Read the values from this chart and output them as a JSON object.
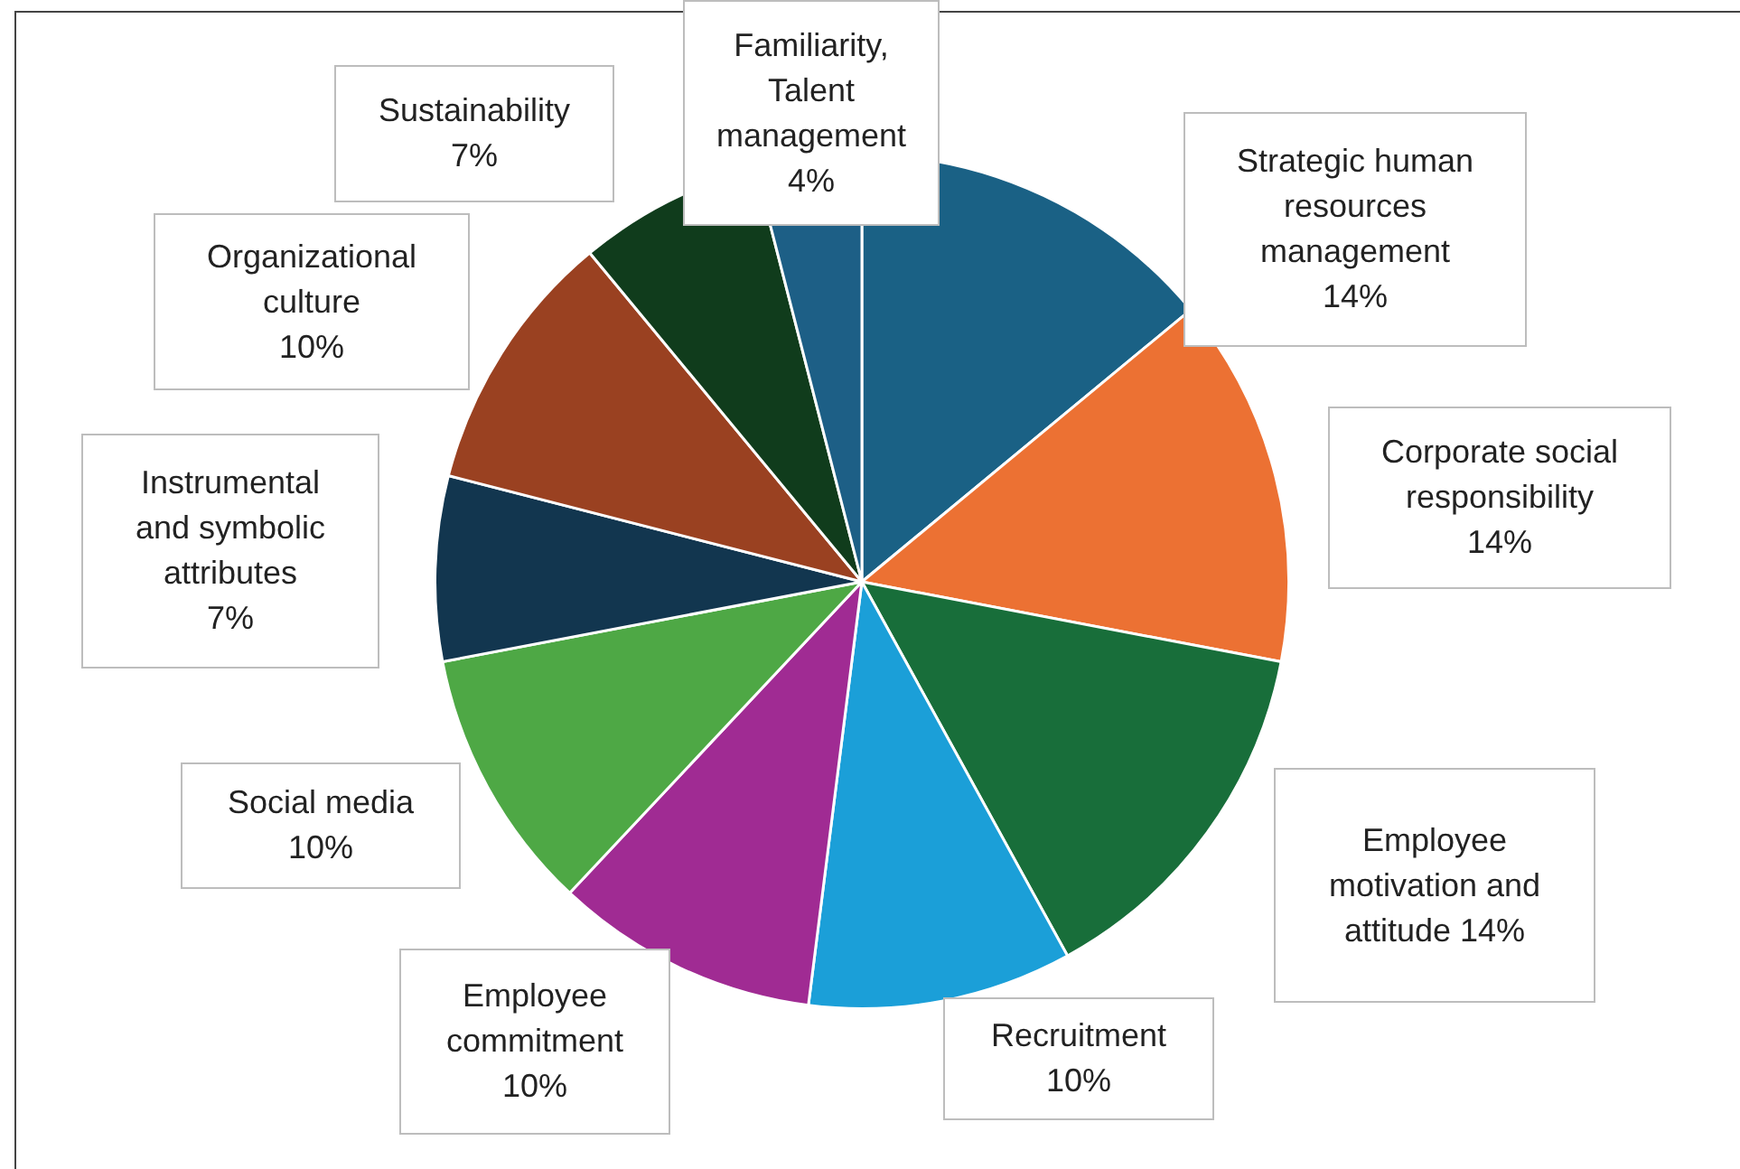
{
  "chart_data": {
    "type": "pie",
    "categories": [
      "Strategic human resources management",
      "Corporate social responsibility",
      "Employee motivation and attitude",
      "Recruitment",
      "Employee commitment",
      "Social media",
      "Instrumental and symbolic attributes",
      "Organizational culture",
      "Sustainability",
      "Familiarity, Talent management"
    ],
    "values": [
      14,
      14,
      14,
      10,
      10,
      10,
      7,
      10,
      7,
      4
    ],
    "value_labels": [
      "14%",
      "14%",
      "14%",
      "10%",
      "10%",
      "10%",
      "7%",
      "10%",
      "7%",
      "4%"
    ],
    "colors": [
      "#1a6185",
      "#ec7133",
      "#186e3a",
      "#1b9fd8",
      "#a02b93",
      "#4ea845",
      "#12364f",
      "#9a4121",
      "#103c1c",
      "#1d5f86"
    ],
    "legend": false
  }
}
